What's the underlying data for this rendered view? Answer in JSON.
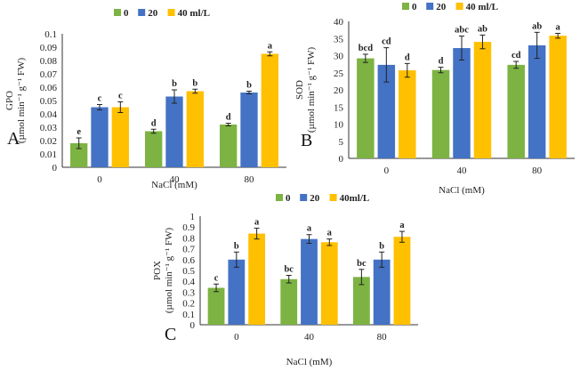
{
  "colors": {
    "s0": "#7cb342",
    "s20": "#4472c4",
    "s40": "#ffc000",
    "axis": "#333333",
    "err": "#222222"
  },
  "chart_data": [
    {
      "type": "bar",
      "panel": "A",
      "title": "",
      "ylabel_main": "GPO",
      "ylabel_unit": "(µmol min⁻¹ g⁻¹ FW)",
      "xlabel": "NaCl (mM)",
      "categories": [
        "0",
        "40",
        "80"
      ],
      "legend": [
        "0",
        "20",
        "40 ml/L"
      ],
      "ylim": [
        0,
        0.1
      ],
      "yticks": [
        "0",
        "0.01",
        "0.02",
        "0.03",
        "0.04",
        "0.05",
        "0.06",
        "0.07",
        "0.08",
        "0.09",
        "0.1"
      ],
      "series": [
        {
          "name": "0",
          "values": [
            0.018,
            0.027,
            0.032
          ],
          "errors": [
            0.004,
            0.0015,
            0.001
          ],
          "letters": [
            "e",
            "d",
            "d"
          ]
        },
        {
          "name": "20",
          "values": [
            0.045,
            0.053,
            0.056
          ],
          "errors": [
            0.002,
            0.005,
            0.001
          ],
          "letters": [
            "c",
            "b",
            "b"
          ]
        },
        {
          "name": "40 ml/L",
          "values": [
            0.045,
            0.057,
            0.085
          ],
          "errors": [
            0.004,
            0.0015,
            0.0015
          ],
          "letters": [
            "c",
            "b",
            "a"
          ]
        }
      ]
    },
    {
      "type": "bar",
      "panel": "B",
      "title": "",
      "ylabel_main": "SOD",
      "ylabel_unit": "(µmol min⁻¹ g⁻¹ FW)",
      "xlabel": "NaCl (mM)",
      "categories": [
        "0",
        "40",
        "80"
      ],
      "legend": [
        "0",
        "20",
        "40 ml/L"
      ],
      "ylim": [
        0,
        40
      ],
      "yticks": [
        "0",
        "5",
        "10",
        "15",
        "20",
        "25",
        "30",
        "35",
        "40"
      ],
      "series": [
        {
          "name": "0",
          "values": [
            29.2,
            25.8,
            27.3
          ],
          "errors": [
            1.2,
            0.8,
            1.0
          ],
          "letters": [
            "bcd",
            "d",
            "cd"
          ]
        },
        {
          "name": "20",
          "values": [
            27.3,
            32.2,
            33.0
          ],
          "errors": [
            5.0,
            3.5,
            3.8
          ],
          "letters": [
            "cd",
            "abc",
            "ab"
          ]
        },
        {
          "name": "40 ml/L",
          "values": [
            25.7,
            34.0,
            35.8
          ],
          "errors": [
            2.0,
            2.0,
            0.7
          ],
          "letters": [
            "d",
            "ab",
            "a"
          ]
        }
      ]
    },
    {
      "type": "bar",
      "panel": "C",
      "title": "",
      "ylabel_main": "POX",
      "ylabel_unit": "(µmol min⁻¹ g⁻¹ FW)",
      "xlabel": "NaCl (mM)",
      "categories": [
        "0",
        "40",
        "80"
      ],
      "legend": [
        "0",
        "20",
        "40ml/L"
      ],
      "ylim": [
        0,
        1
      ],
      "yticks": [
        "0",
        "0.1",
        "0.2",
        "0.3",
        "0.4",
        "0.5",
        "0.6",
        "0.7",
        "0.8",
        "0.9",
        "1"
      ],
      "series": [
        {
          "name": "0",
          "values": [
            0.34,
            0.42,
            0.44
          ],
          "errors": [
            0.035,
            0.035,
            0.07
          ],
          "letters": [
            "c",
            "bc",
            "bc"
          ]
        },
        {
          "name": "20",
          "values": [
            0.6,
            0.79,
            0.6
          ],
          "errors": [
            0.07,
            0.04,
            0.07
          ],
          "letters": [
            "b",
            "a",
            "b"
          ]
        },
        {
          "name": "40ml/L",
          "values": [
            0.84,
            0.76,
            0.81
          ],
          "errors": [
            0.05,
            0.03,
            0.05
          ],
          "letters": [
            "a",
            "a",
            "a"
          ]
        }
      ]
    }
  ]
}
